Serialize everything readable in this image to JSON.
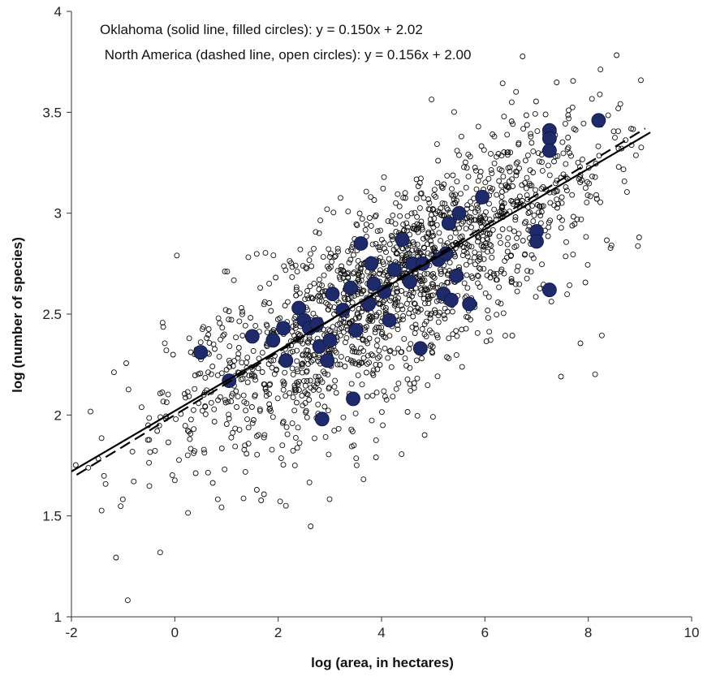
{
  "chart_data": {
    "type": "scatter",
    "xlabel": "log (area, in hectares)",
    "ylabel": "log (number of species)",
    "xlim": [
      -2,
      10
    ],
    "ylim": [
      1,
      4
    ],
    "x_ticks": [
      "-2",
      "0",
      "2",
      "4",
      "6",
      "8",
      "10"
    ],
    "y_ticks": [
      "1",
      "1.5",
      "2",
      "2.5",
      "3",
      "3.5",
      "4"
    ],
    "annotations": [
      "Oklahoma (solid line, filled circles): y = 0.150x + 2.02",
      " North America (dashed line, open circles): y = 0.156x + 2.00"
    ],
    "grid": false,
    "series": [
      {
        "name": "Oklahoma",
        "marker": "filled circle",
        "line": "solid",
        "color": "#1f2a6b",
        "fit": {
          "slope": 0.15,
          "intercept": 2.02,
          "x_range": [
            -2,
            9.2
          ]
        },
        "points": [
          [
            0.5,
            2.31
          ],
          [
            1.05,
            2.17
          ],
          [
            1.5,
            2.39
          ],
          [
            1.9,
            2.37
          ],
          [
            2.1,
            2.43
          ],
          [
            2.15,
            2.27
          ],
          [
            2.4,
            2.53
          ],
          [
            2.5,
            2.47
          ],
          [
            2.6,
            2.43
          ],
          [
            2.75,
            2.45
          ],
          [
            2.8,
            2.34
          ],
          [
            2.85,
            1.98
          ],
          [
            2.95,
            2.27
          ],
          [
            3.0,
            2.37
          ],
          [
            3.05,
            2.6
          ],
          [
            3.25,
            2.52
          ],
          [
            3.4,
            2.63
          ],
          [
            3.45,
            2.08
          ],
          [
            3.5,
            2.42
          ],
          [
            3.6,
            2.85
          ],
          [
            3.75,
            2.55
          ],
          [
            3.8,
            2.75
          ],
          [
            3.85,
            2.65
          ],
          [
            4.05,
            2.61
          ],
          [
            4.15,
            2.47
          ],
          [
            4.25,
            2.72
          ],
          [
            4.4,
            2.87
          ],
          [
            4.55,
            2.66
          ],
          [
            4.6,
            2.75
          ],
          [
            4.75,
            2.33
          ],
          [
            4.8,
            2.75
          ],
          [
            5.1,
            2.77
          ],
          [
            5.2,
            2.6
          ],
          [
            5.25,
            2.8
          ],
          [
            5.3,
            2.95
          ],
          [
            5.35,
            2.57
          ],
          [
            5.45,
            2.69
          ],
          [
            5.5,
            3.0
          ],
          [
            5.7,
            2.55
          ],
          [
            5.95,
            3.08
          ],
          [
            7.0,
            2.91
          ],
          [
            7.0,
            2.86
          ],
          [
            7.25,
            3.41
          ],
          [
            7.25,
            3.37
          ],
          [
            7.25,
            3.31
          ],
          [
            7.25,
            2.62
          ],
          [
            8.2,
            3.46
          ]
        ]
      },
      {
        "name": "North America",
        "marker": "open circle",
        "line": "dashed",
        "color": "#111111",
        "fit": {
          "slope": 0.156,
          "intercept": 2.0,
          "x_range": [
            -1.9,
            9.1
          ]
        },
        "points_note_count": 1800
      }
    ]
  }
}
